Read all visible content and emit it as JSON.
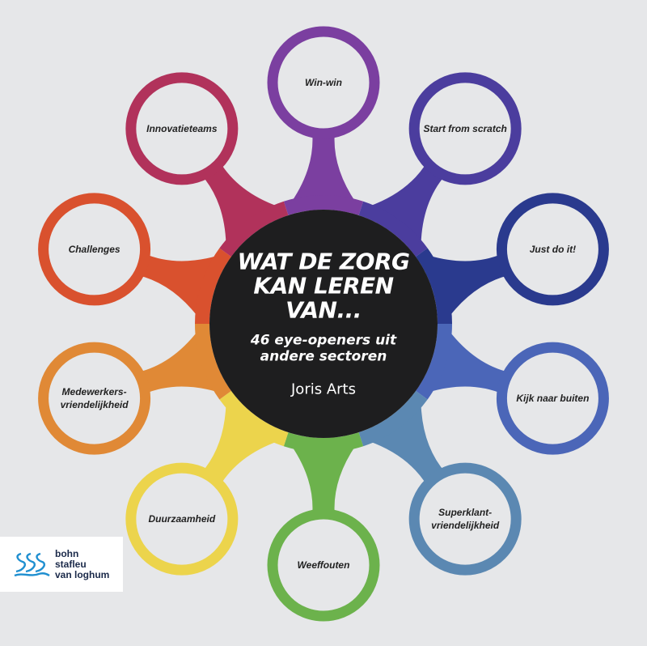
{
  "cover": {
    "title_line1": "WAT DE ZORG",
    "title_line2": "KAN LEREN VAN...",
    "subtitle_line1": "46 eye-openers uit",
    "subtitle_line2": "andere sectoren",
    "author": "Joris Arts",
    "center_color": "#1e1e1f",
    "background_color": "#e6e7e9"
  },
  "nodes": [
    {
      "label": "Win-win",
      "color": "#7b3fa0"
    },
    {
      "label": "Start from scratch",
      "color": "#4b3d9e"
    },
    {
      "label": "Just do it!",
      "color": "#2a3a8e"
    },
    {
      "label": "Kijk naar buiten",
      "color": "#4b66b8"
    },
    {
      "label": "Superklant-vriendelijkheid",
      "color": "#5b88b2"
    },
    {
      "label": "Weeffouten",
      "color": "#6cb24c"
    },
    {
      "label": "Duurzaamheid",
      "color": "#ecd44c"
    },
    {
      "label": "Medewerkers-vriendelijkheid",
      "color": "#e08936"
    },
    {
      "label": "Challenges",
      "color": "#d9512e"
    },
    {
      "label": "Innovatieteams",
      "color": "#b1325b"
    }
  ],
  "publisher": {
    "line1": "bohn",
    "line2": "stafleu",
    "line3": "van loghum",
    "logo_color": "#1f8fd0"
  }
}
